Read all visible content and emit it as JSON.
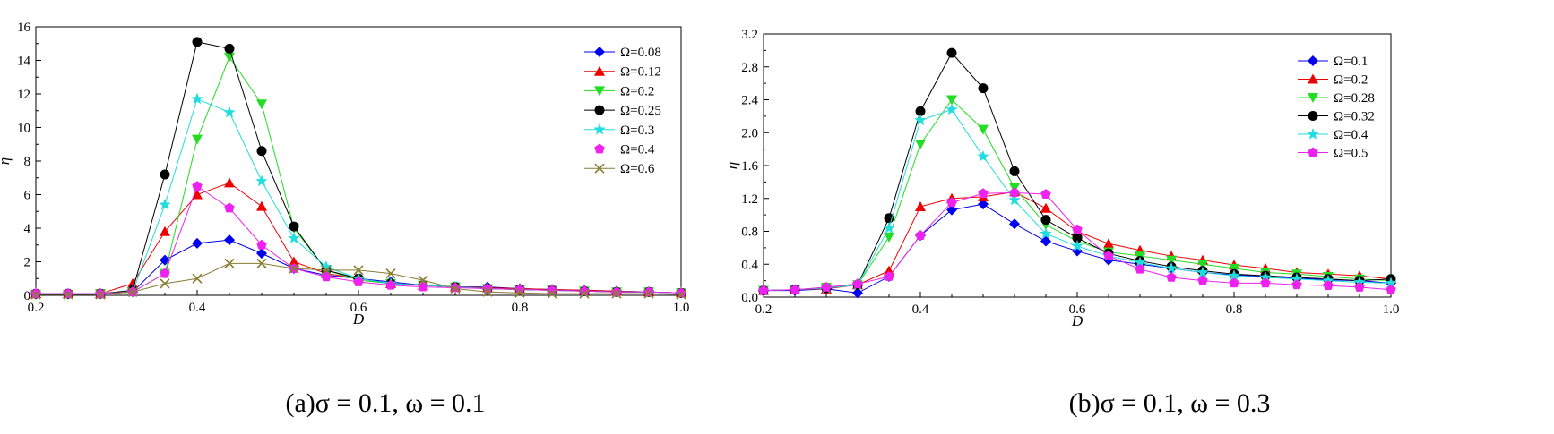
{
  "chart_data": [
    {
      "type": "line",
      "caption": "(a)σ = 0.1, ω = 0.1",
      "xlabel": "D",
      "ylabel": "η",
      "xlim": [
        0.2,
        1.0
      ],
      "ylim": [
        0,
        16
      ],
      "xticks": [
        "0.2",
        "0.4",
        "0.6",
        "0.8",
        "1.0"
      ],
      "xtick_values": [
        0.2,
        0.4,
        0.6,
        0.8,
        1.0
      ],
      "yticks": [
        "0",
        "2",
        "4",
        "6",
        "8",
        "10",
        "12",
        "14",
        "16"
      ],
      "ytick_values": [
        0,
        2,
        4,
        6,
        8,
        10,
        12,
        14,
        16
      ],
      "grid": false,
      "legend_position": "top-right",
      "x": [
        0.2,
        0.24,
        0.28,
        0.32,
        0.36,
        0.4,
        0.44,
        0.48,
        0.52,
        0.56,
        0.6,
        0.64,
        0.68,
        0.72,
        0.76,
        0.8,
        0.84,
        0.88,
        0.92,
        0.96,
        1.0
      ],
      "series": [
        {
          "name": "Ω=0.08",
          "color": "#0000ee",
          "marker": "diamond",
          "values": [
            0.1,
            0.1,
            0.1,
            0.2,
            2.1,
            3.1,
            3.3,
            2.5,
            1.6,
            1.2,
            1.0,
            0.8,
            0.6,
            0.5,
            0.5,
            0.4,
            0.35,
            0.3,
            0.25,
            0.2,
            0.15
          ]
        },
        {
          "name": "Ω=0.12",
          "color": "#ee0000",
          "marker": "triangle-up",
          "values": [
            0.1,
            0.1,
            0.1,
            0.7,
            3.8,
            6.0,
            6.7,
            5.3,
            2.0,
            1.3,
            1.0,
            0.7,
            0.6,
            0.5,
            0.45,
            0.4,
            0.35,
            0.3,
            0.25,
            0.2,
            0.15
          ]
        },
        {
          "name": "Ω=0.2",
          "color": "#22dd22",
          "marker": "triangle-down",
          "values": [
            0.05,
            0.05,
            0.1,
            0.2,
            1.3,
            9.3,
            14.2,
            11.4,
            4.0,
            1.5,
            0.9,
            0.7,
            0.6,
            0.5,
            0.4,
            0.35,
            0.3,
            0.25,
            0.2,
            0.2,
            0.15
          ]
        },
        {
          "name": "Ω=0.25",
          "color": "#000000",
          "marker": "circle",
          "values": [
            0.1,
            0.1,
            0.1,
            0.3,
            7.2,
            15.1,
            14.7,
            8.6,
            4.1,
            1.5,
            1.0,
            0.7,
            0.6,
            0.5,
            0.4,
            0.35,
            0.3,
            0.25,
            0.2,
            0.2,
            0.15
          ]
        },
        {
          "name": "Ω=0.3",
          "color": "#22dddd",
          "marker": "star",
          "values": [
            0.1,
            0.1,
            0.1,
            0.2,
            5.4,
            11.7,
            10.9,
            6.8,
            3.4,
            1.7,
            1.0,
            0.7,
            0.6,
            0.5,
            0.4,
            0.35,
            0.3,
            0.25,
            0.2,
            0.2,
            0.15
          ]
        },
        {
          "name": "Ω=0.4",
          "color": "#ee22ee",
          "marker": "pentagon",
          "values": [
            0.1,
            0.1,
            0.1,
            0.2,
            1.3,
            6.5,
            5.2,
            3.0,
            1.6,
            1.1,
            0.8,
            0.6,
            0.5,
            0.45,
            0.4,
            0.35,
            0.3,
            0.25,
            0.2,
            0.2,
            0.15
          ]
        },
        {
          "name": "Ω=0.6",
          "color": "#8b7d33",
          "marker": "x",
          "values": [
            0.05,
            0.05,
            0.05,
            0.2,
            0.7,
            1.0,
            1.9,
            1.9,
            1.6,
            1.5,
            1.5,
            1.3,
            0.9,
            0.4,
            0.2,
            0.15,
            0.1,
            0.1,
            0.1,
            0.1,
            0.05
          ]
        }
      ]
    },
    {
      "type": "line",
      "caption": "(b)σ = 0.1, ω = 0.3",
      "xlabel": "D",
      "ylabel": "η",
      "xlim": [
        0.2,
        1.0
      ],
      "ylim": [
        0,
        3.2
      ],
      "xticks": [
        "0.2",
        "0.4",
        "0.6",
        "0.8",
        "1.0"
      ],
      "xtick_values": [
        0.2,
        0.4,
        0.6,
        0.8,
        1.0
      ],
      "yticks": [
        "0.0",
        "0.4",
        "0.8",
        "1.2",
        "1.6",
        "2.0",
        "2.4",
        "2.8",
        "3.2"
      ],
      "ytick_values": [
        0,
        0.4,
        0.8,
        1.2,
        1.6,
        2.0,
        2.4,
        2.8,
        3.2
      ],
      "grid": false,
      "legend_position": "top-right",
      "x": [
        0.2,
        0.24,
        0.28,
        0.32,
        0.36,
        0.4,
        0.44,
        0.48,
        0.52,
        0.56,
        0.6,
        0.64,
        0.68,
        0.72,
        0.76,
        0.8,
        0.84,
        0.88,
        0.92,
        0.96,
        1.0
      ],
      "series": [
        {
          "name": "Ω=0.1",
          "color": "#0000ee",
          "marker": "diamond",
          "values": [
            0.08,
            0.08,
            0.1,
            0.05,
            0.25,
            0.75,
            1.06,
            1.13,
            0.89,
            0.68,
            0.56,
            0.45,
            0.4,
            0.35,
            0.3,
            0.27,
            0.25,
            0.23,
            0.21,
            0.2,
            0.17
          ]
        },
        {
          "name": "Ω=0.2",
          "color": "#ee0000",
          "marker": "triangle-up",
          "values": [
            0.08,
            0.09,
            0.1,
            0.15,
            0.32,
            1.1,
            1.2,
            1.22,
            1.28,
            1.08,
            0.8,
            0.65,
            0.57,
            0.5,
            0.45,
            0.39,
            0.35,
            0.3,
            0.28,
            0.26,
            0.22
          ]
        },
        {
          "name": "Ω=0.28",
          "color": "#22dd22",
          "marker": "triangle-down",
          "values": [
            0.08,
            0.09,
            0.12,
            0.15,
            0.73,
            1.86,
            2.4,
            2.04,
            1.33,
            0.88,
            0.68,
            0.55,
            0.5,
            0.45,
            0.4,
            0.35,
            0.3,
            0.28,
            0.25,
            0.22,
            0.2
          ]
        },
        {
          "name": "Ω=0.32",
          "color": "#000000",
          "marker": "circle",
          "values": [
            0.08,
            0.09,
            0.11,
            0.15,
            0.96,
            2.26,
            2.97,
            2.54,
            1.53,
            0.94,
            0.72,
            0.53,
            0.44,
            0.37,
            0.32,
            0.28,
            0.26,
            0.24,
            0.22,
            0.2,
            0.22
          ]
        },
        {
          "name": "Ω=0.4",
          "color": "#22dddd",
          "marker": "star",
          "values": [
            0.08,
            0.09,
            0.11,
            0.15,
            0.84,
            2.15,
            2.28,
            1.71,
            1.18,
            0.77,
            0.62,
            0.5,
            0.42,
            0.35,
            0.3,
            0.26,
            0.24,
            0.22,
            0.2,
            0.18,
            0.17
          ]
        },
        {
          "name": "Ω=0.5",
          "color": "#ee22ee",
          "marker": "pentagon",
          "values": [
            0.08,
            0.09,
            0.12,
            0.16,
            0.25,
            0.75,
            1.15,
            1.26,
            1.27,
            1.25,
            0.82,
            0.5,
            0.34,
            0.24,
            0.2,
            0.17,
            0.17,
            0.15,
            0.14,
            0.12,
            0.09
          ]
        }
      ]
    }
  ]
}
